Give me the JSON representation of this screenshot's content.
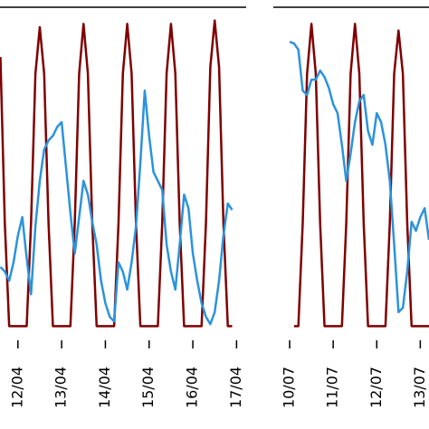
{
  "chart_data": [
    {
      "type": "line",
      "x": [
        11.6,
        11.7,
        11.8,
        11.9,
        12.0,
        12.1,
        12.2,
        12.3,
        12.4,
        12.5,
        12.6,
        12.7,
        12.8,
        12.9,
        13.0,
        13.1,
        13.2,
        13.3,
        13.4,
        13.5,
        13.6,
        13.7,
        13.8,
        13.9,
        14.0,
        14.1,
        14.2,
        14.3,
        14.4,
        14.5,
        14.6,
        14.7,
        14.8,
        14.9,
        15.0,
        15.1,
        15.2,
        15.3,
        15.4,
        15.5,
        15.6,
        15.7,
        15.8,
        15.9,
        16.0,
        16.1,
        16.2,
        16.3,
        16.4,
        16.5,
        16.6,
        16.7,
        16.8,
        16.9,
        17.0,
        17.1,
        17.2
      ],
      "series": [
        {
          "color": "#7f0000",
          "values": [
            85,
            35,
            4,
            4,
            4,
            4,
            4,
            35,
            80,
            94,
            80,
            35,
            4,
            4,
            4,
            4,
            4,
            35,
            80,
            95,
            80,
            35,
            4,
            4,
            4,
            4,
            4,
            35,
            80,
            95,
            80,
            35,
            4,
            4,
            4,
            4,
            4,
            35,
            80,
            95,
            80,
            35,
            4,
            4,
            4,
            4,
            4,
            35,
            82,
            96,
            82,
            35,
            4,
            4,
            null,
            null,
            null
          ]
        },
        {
          "color": "#2b93db",
          "values": [
            21.8,
            20.4,
            17.7,
            23.2,
            31.3,
            36.8,
            24.5,
            13.6,
            34.1,
            47.7,
            57.2,
            59.9,
            61.3,
            64,
            65.4,
            51.8,
            38.1,
            25.9,
            36.8,
            47.7,
            43.6,
            35.4,
            28.6,
            17.7,
            10.9,
            6.8,
            5.4,
            23.2,
            20.4,
            15,
            23.2,
            34.1,
            53.1,
            74.9,
            61.3,
            50.4,
            47.7,
            45,
            28.6,
            20.4,
            15,
            28.6,
            43.6,
            39.5,
            25.9,
            17.7,
            10.9,
            6.8,
            4.6,
            8.2,
            17.7,
            31.3,
            40.9,
            39,
            null,
            null,
            null
          ]
        }
      ],
      "xlim": [
        11.59,
        17.22
      ],
      "xticks": [
        {
          "value": 12,
          "label": "12/04"
        },
        {
          "value": 13,
          "label": "13/04"
        },
        {
          "value": 14,
          "label": "14/04"
        },
        {
          "value": 15,
          "label": "15/04"
        },
        {
          "value": 16,
          "label": "16/04"
        },
        {
          "value": 17,
          "label": "17/04"
        }
      ],
      "ylim": [
        0,
        100
      ]
    },
    {
      "type": "line",
      "x": [
        9.7,
        9.8,
        9.9,
        10.0,
        10.1,
        10.2,
        10.3,
        10.4,
        10.5,
        10.6,
        10.7,
        10.8,
        10.9,
        11.0,
        11.1,
        11.2,
        11.3,
        11.4,
        11.5,
        11.6,
        11.7,
        11.8,
        11.9,
        12.0,
        12.1,
        12.2,
        12.3,
        12.4,
        12.5,
        12.6,
        12.7,
        12.8,
        12.9,
        13.0,
        13.1,
        13.2
      ],
      "series": [
        {
          "color": "#7f0000",
          "values": [
            null,
            null,
            null,
            null,
            4,
            4,
            35,
            80,
            95,
            80,
            35,
            4,
            4,
            4,
            4,
            4,
            35,
            80,
            95,
            80,
            35,
            4,
            4,
            4,
            4,
            4,
            35,
            80,
            93,
            80,
            35,
            4,
            4,
            4,
            4,
            4
          ]
        },
        {
          "color": "#2b93db",
          "values": [
            null,
            null,
            null,
            89.6,
            89.1,
            87.2,
            74.9,
            73.6,
            78.2,
            78.2,
            80.9,
            79,
            75.7,
            70.8,
            68.1,
            58.6,
            47.7,
            55.9,
            65.4,
            71.7,
            73.6,
            62.7,
            58.6,
            68.1,
            65.4,
            58.6,
            47.7,
            28.6,
            8.2,
            9.5,
            20.4,
            35.4,
            32.7,
            36.8,
            39.5,
            30
          ]
        }
      ],
      "xlim": [
        9.625,
        13.2
      ],
      "xticks": [
        {
          "value": 10,
          "label": "10/07"
        },
        {
          "value": 11,
          "label": "11/07"
        },
        {
          "value": 12,
          "label": "12/07"
        },
        {
          "value": 13,
          "label": "13/07"
        }
      ],
      "ylim": [
        0,
        100
      ]
    }
  ]
}
